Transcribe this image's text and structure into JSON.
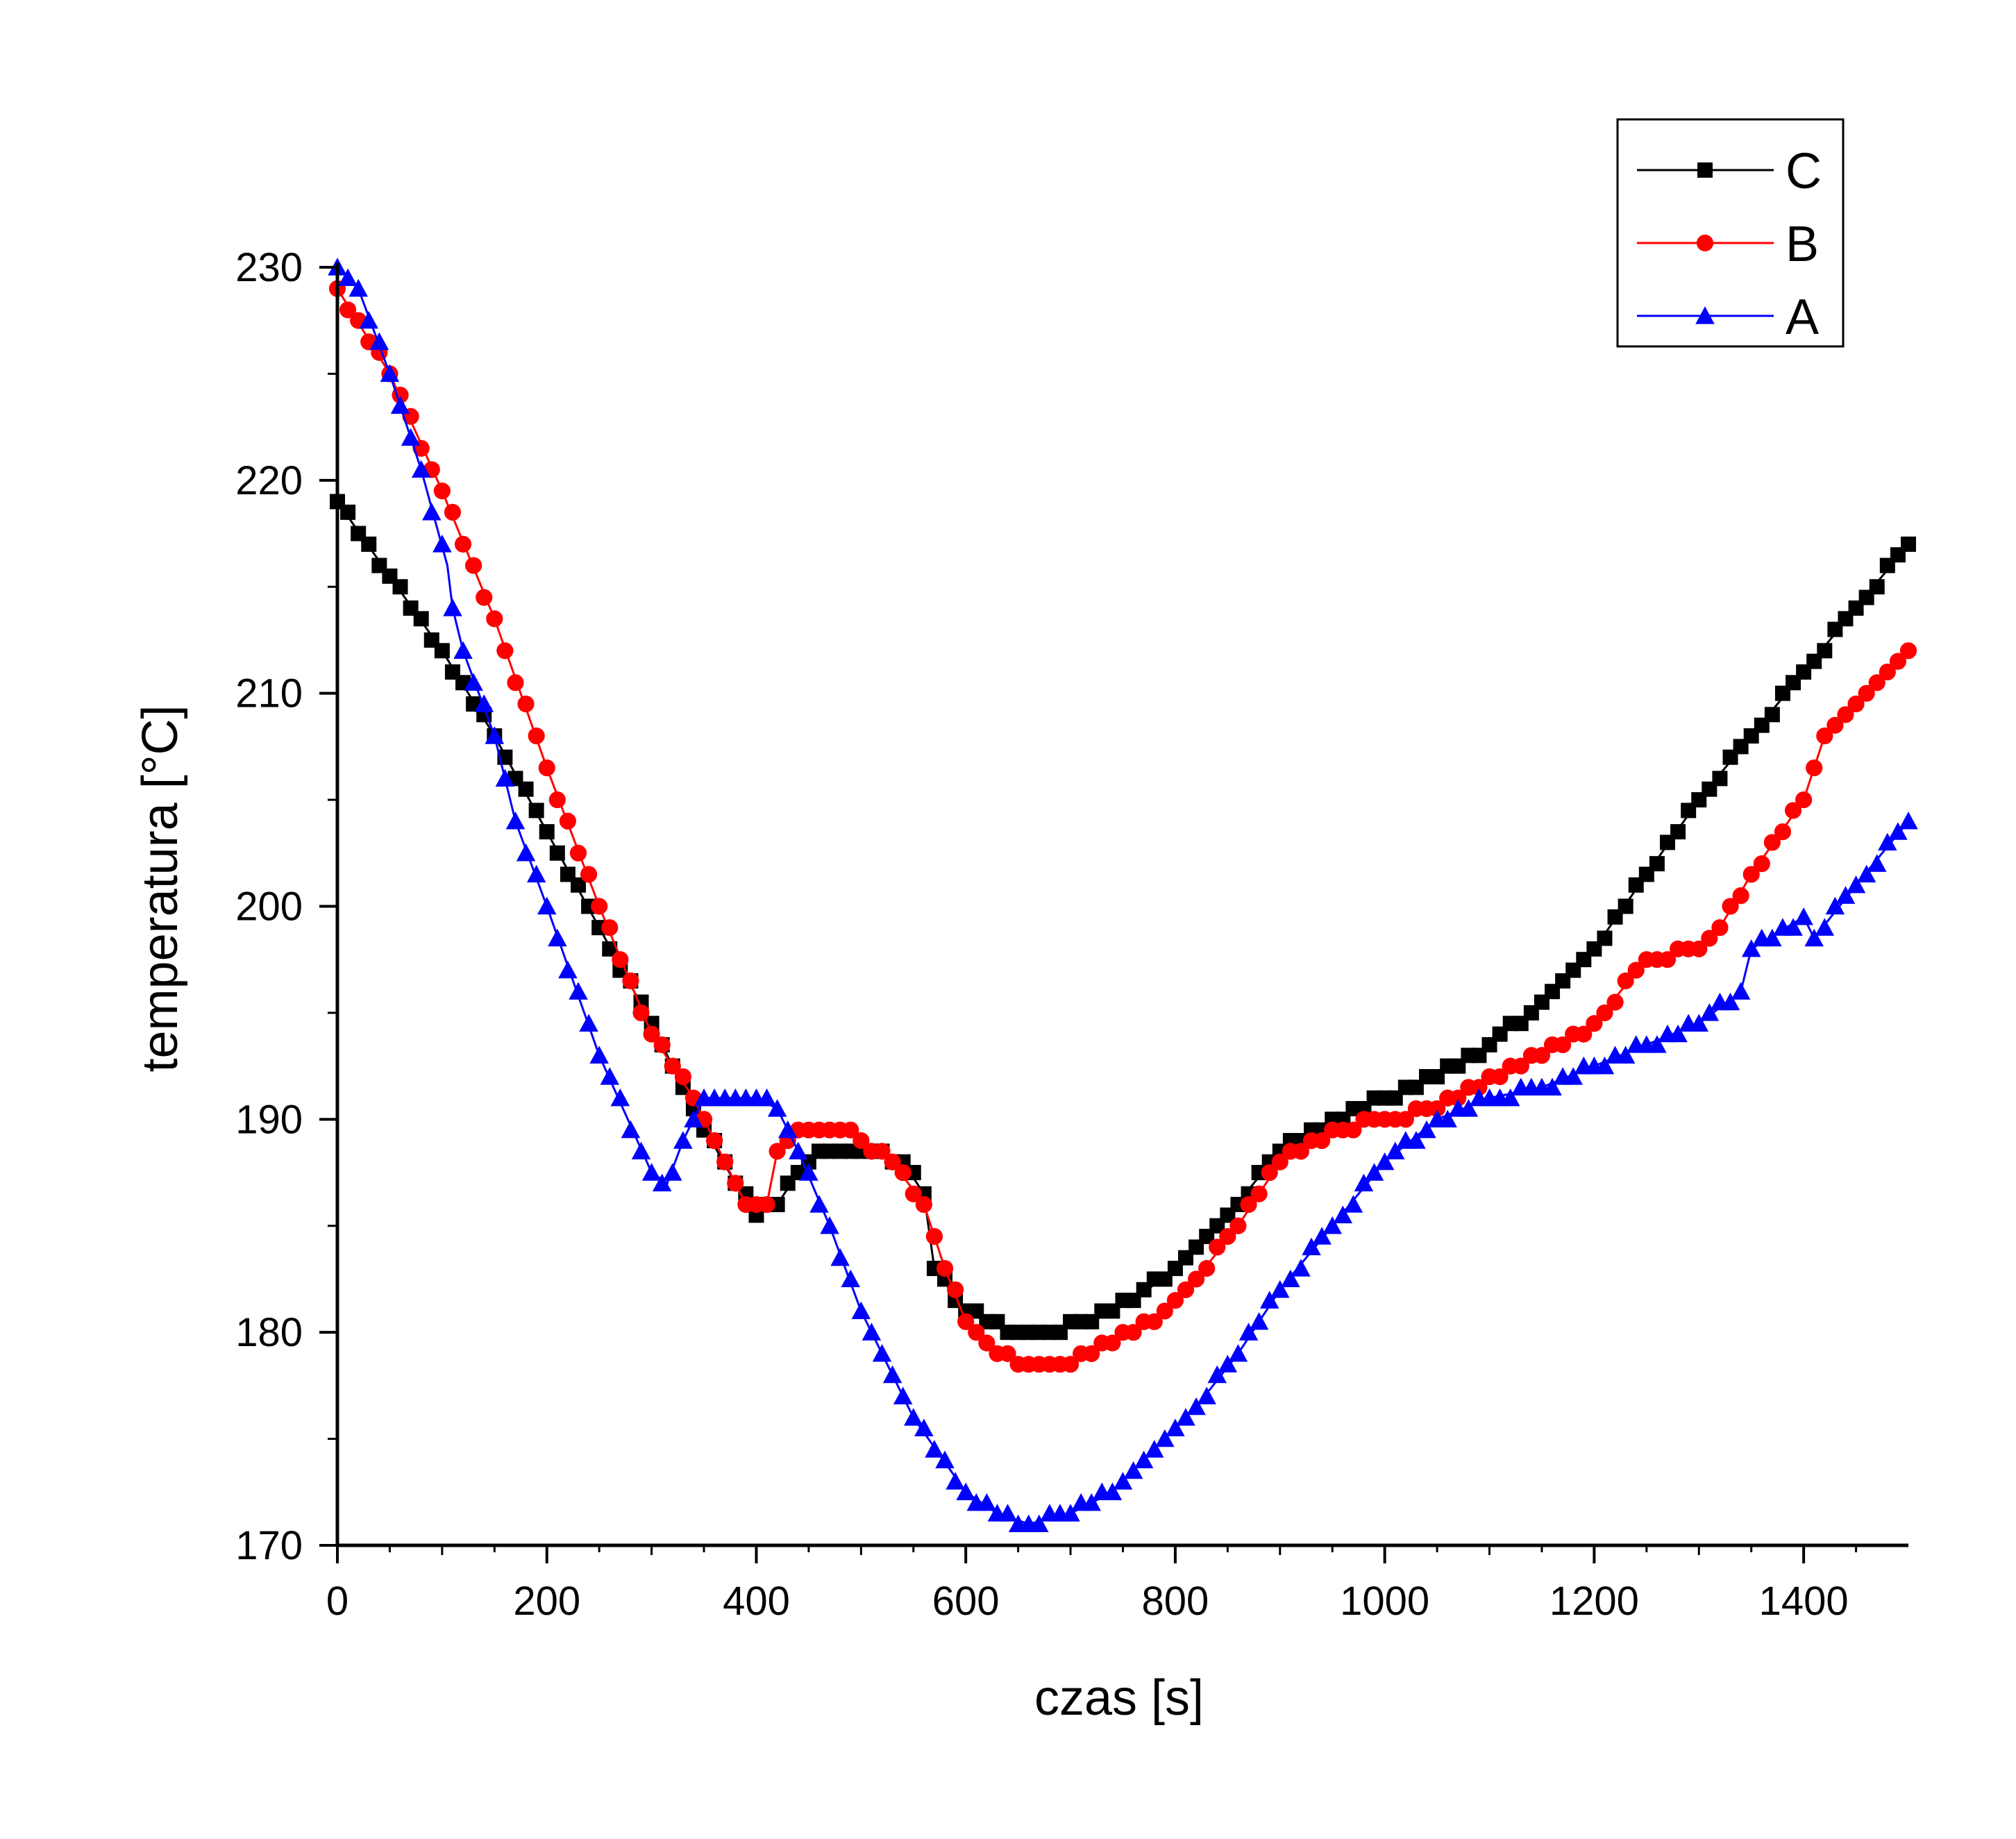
{
  "chart_data": {
    "type": "line",
    "title": "",
    "xlabel": "czas [s]",
    "ylabel": "temperatura [°C]",
    "xlim": [
      0,
      1500
    ],
    "ylim": [
      170,
      230
    ],
    "xticks": [
      0,
      200,
      400,
      600,
      800,
      1000,
      1200,
      1400
    ],
    "yticks": [
      170,
      180,
      190,
      200,
      210,
      220,
      230
    ],
    "grid": false,
    "legend": "top-right",
    "series": [
      {
        "name": "C",
        "color": "#000000",
        "marker": "square",
        "x": [
          0,
          50,
          100,
          150,
          200,
          250,
          300,
          340,
          380,
          400,
          420,
          440,
          460,
          500,
          540,
          560,
          570,
          600,
          640,
          680,
          720,
          760,
          800,
          850,
          900,
          950,
          1000,
          1050,
          1100,
          1150,
          1200,
          1250,
          1300,
          1350,
          1400,
          1450,
          1500
        ],
        "values": [
          219,
          215.5,
          212,
          208,
          203.5,
          199,
          194.5,
          190.5,
          187,
          185.5,
          186,
          187.5,
          188.5,
          188.5,
          188,
          186.5,
          183,
          181,
          180,
          180,
          180.5,
          181.5,
          183,
          185.5,
          188.5,
          190,
          191,
          192,
          193.5,
          195.5,
          198,
          201.5,
          205,
          208,
          211,
          214,
          217
        ]
      },
      {
        "name": "B",
        "color": "#ff0000",
        "marker": "circle",
        "x": [
          0,
          50,
          100,
          150,
          200,
          250,
          300,
          340,
          370,
          390,
          410,
          420,
          440,
          460,
          480,
          500,
          530,
          560,
          580,
          600,
          630,
          660,
          700,
          740,
          780,
          820,
          860,
          900,
          950,
          1000,
          1050,
          1100,
          1150,
          1200,
          1250,
          1300,
          1320,
          1350,
          1400,
          1420,
          1460,
          1500
        ],
        "values": [
          229,
          225,
          219.5,
          213.5,
          206.5,
          200,
          194,
          191,
          188,
          186,
          186,
          188.5,
          189.5,
          189.5,
          189.5,
          189,
          188,
          186,
          183,
          180.5,
          179,
          178.5,
          178.5,
          179.5,
          180.5,
          182.5,
          185,
          188,
          189.5,
          190,
          190.5,
          192,
          193,
          194.5,
          197.5,
          198,
          199,
          201.5,
          205,
          208,
          210,
          212
        ]
      },
      {
        "name": "A",
        "color": "#0000ff",
        "marker": "triangle",
        "x": [
          0,
          20,
          50,
          80,
          105,
          110,
          120,
          150,
          170,
          200,
          250,
          300,
          315,
          330,
          350,
          370,
          400,
          420,
          440,
          470,
          500,
          550,
          600,
          630,
          660,
          700,
          740,
          780,
          820,
          860,
          900,
          950,
          1000,
          1050,
          1100,
          1150,
          1200,
          1250,
          1300,
          1340,
          1350,
          1400,
          1410,
          1450,
          1500
        ],
        "values": [
          230,
          229,
          225,
          220.5,
          216,
          214,
          212,
          208,
          204,
          200,
          193,
          187.5,
          187,
          189,
          191,
          191,
          191,
          190.5,
          188.5,
          185,
          181,
          176,
          172.5,
          171.5,
          171,
          171.5,
          172.5,
          174.5,
          176.5,
          179,
          182,
          185,
          188,
          190,
          191,
          191.5,
          192.5,
          193.5,
          194.5,
          196,
          198,
          199.5,
          198.5,
          201,
          204
        ]
      }
    ]
  }
}
